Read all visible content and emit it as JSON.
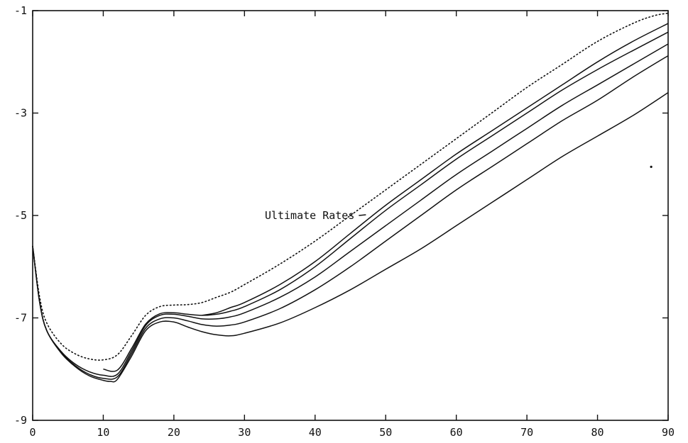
{
  "chart_data": {
    "type": "line",
    "title": "",
    "xlabel": "",
    "ylabel": "",
    "xlim": [
      0,
      90
    ],
    "ylim": [
      -9,
      -1
    ],
    "xticks": [
      0,
      10,
      20,
      30,
      40,
      50,
      60,
      70,
      80,
      90
    ],
    "yticks": [
      -9,
      -7,
      -5,
      -3,
      -1
    ],
    "grid": false,
    "annotation": {
      "text": "Ultimate Rates",
      "points_to": "dotted series",
      "at": [
        47,
        -5
      ]
    },
    "series": [
      {
        "style": "dotted",
        "x": [
          0,
          1,
          2,
          4,
          6,
          8,
          10,
          12,
          14,
          16,
          18,
          20,
          22,
          24,
          26,
          28,
          30,
          35,
          40,
          45,
          50,
          55,
          60,
          65,
          70,
          75,
          80,
          85,
          88,
          90
        ],
        "y": [
          -5.6,
          -6.6,
          -7.1,
          -7.5,
          -7.7,
          -7.8,
          -7.82,
          -7.72,
          -7.35,
          -6.95,
          -6.78,
          -6.75,
          -6.74,
          -6.7,
          -6.6,
          -6.5,
          -6.35,
          -5.95,
          -5.5,
          -5.0,
          -4.5,
          -4.0,
          -3.5,
          -3.0,
          -2.5,
          -2.05,
          -1.6,
          -1.25,
          -1.1,
          -1.05
        ]
      },
      {
        "style": "solid",
        "x": [
          24,
          26,
          28,
          30,
          35,
          40,
          45,
          50,
          55,
          60,
          65,
          70,
          75,
          80,
          85,
          90
        ],
        "y": [
          -6.95,
          -6.9,
          -6.8,
          -6.7,
          -6.35,
          -5.9,
          -5.35,
          -4.8,
          -4.3,
          -3.8,
          -3.35,
          -2.9,
          -2.45,
          -2.0,
          -1.6,
          -1.25
        ]
      },
      {
        "style": "solid",
        "x": [
          10,
          12,
          14,
          16,
          18,
          20,
          22,
          24,
          26,
          28,
          30,
          35,
          40,
          45,
          50,
          55,
          60,
          65,
          70,
          75,
          80,
          85,
          90
        ],
        "y": [
          -8.0,
          -8.02,
          -7.6,
          -7.12,
          -6.92,
          -6.9,
          -6.93,
          -6.95,
          -6.93,
          -6.87,
          -6.78,
          -6.45,
          -6.0,
          -5.45,
          -4.9,
          -4.4,
          -3.9,
          -3.45,
          -3.0,
          -2.55,
          -2.15,
          -1.78,
          -1.42
        ]
      },
      {
        "style": "solid",
        "x": [
          0,
          1,
          2,
          4,
          6,
          8,
          10,
          12,
          14,
          16,
          18,
          20,
          22,
          24,
          26,
          28,
          30,
          35,
          40,
          45,
          50,
          55,
          60,
          65,
          70,
          75,
          80,
          85,
          90
        ],
        "y": [
          -5.6,
          -6.7,
          -7.25,
          -7.65,
          -7.9,
          -8.05,
          -8.12,
          -8.1,
          -7.65,
          -7.15,
          -6.95,
          -6.93,
          -6.97,
          -7.02,
          -7.02,
          -6.98,
          -6.9,
          -6.6,
          -6.2,
          -5.7,
          -5.2,
          -4.7,
          -4.2,
          -3.75,
          -3.3,
          -2.85,
          -2.45,
          -2.05,
          -1.65
        ]
      },
      {
        "style": "solid",
        "x": [
          0,
          1,
          2,
          4,
          6,
          8,
          10,
          12,
          14,
          16,
          18,
          20,
          22,
          24,
          26,
          28,
          30,
          35,
          40,
          45,
          50,
          55,
          60,
          65,
          70,
          75,
          80,
          85,
          90
        ],
        "y": [
          -5.6,
          -6.7,
          -7.25,
          -7.67,
          -7.93,
          -8.1,
          -8.18,
          -8.15,
          -7.7,
          -7.2,
          -7.02,
          -7.0,
          -7.06,
          -7.13,
          -7.16,
          -7.14,
          -7.08,
          -6.82,
          -6.45,
          -6.0,
          -5.5,
          -5.0,
          -4.5,
          -4.05,
          -3.6,
          -3.15,
          -2.75,
          -2.3,
          -1.88
        ]
      },
      {
        "style": "solid",
        "x": [
          0,
          1,
          2,
          4,
          6,
          8,
          10,
          11,
          12,
          14,
          16,
          18,
          20,
          22,
          24,
          26,
          28,
          30,
          35,
          40,
          45,
          50,
          55,
          60,
          65,
          70,
          75,
          80,
          85,
          90
        ],
        "y": [
          -5.6,
          -6.7,
          -7.25,
          -7.68,
          -7.95,
          -8.13,
          -8.22,
          -8.24,
          -8.2,
          -7.75,
          -7.25,
          -7.08,
          -7.08,
          -7.18,
          -7.27,
          -7.33,
          -7.35,
          -7.3,
          -7.1,
          -6.8,
          -6.45,
          -6.05,
          -5.65,
          -5.2,
          -4.75,
          -4.3,
          -3.85,
          -3.45,
          -3.05,
          -2.6
        ]
      }
    ]
  },
  "colors": {
    "line": "#111111",
    "background": "#ffffff"
  }
}
